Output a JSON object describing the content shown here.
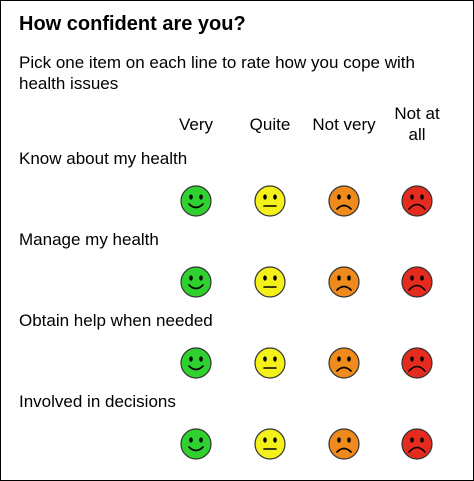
{
  "header": {
    "title": "How confident are you?",
    "instruction": "Pick one item on each line to rate how you cope with health issues"
  },
  "columns": [
    "Very",
    "Quite",
    "Not very",
    "Not at all"
  ],
  "rows": [
    "Know about my health",
    "Manage my health",
    "Obtain help when needed",
    "Involved in decisions"
  ]
}
